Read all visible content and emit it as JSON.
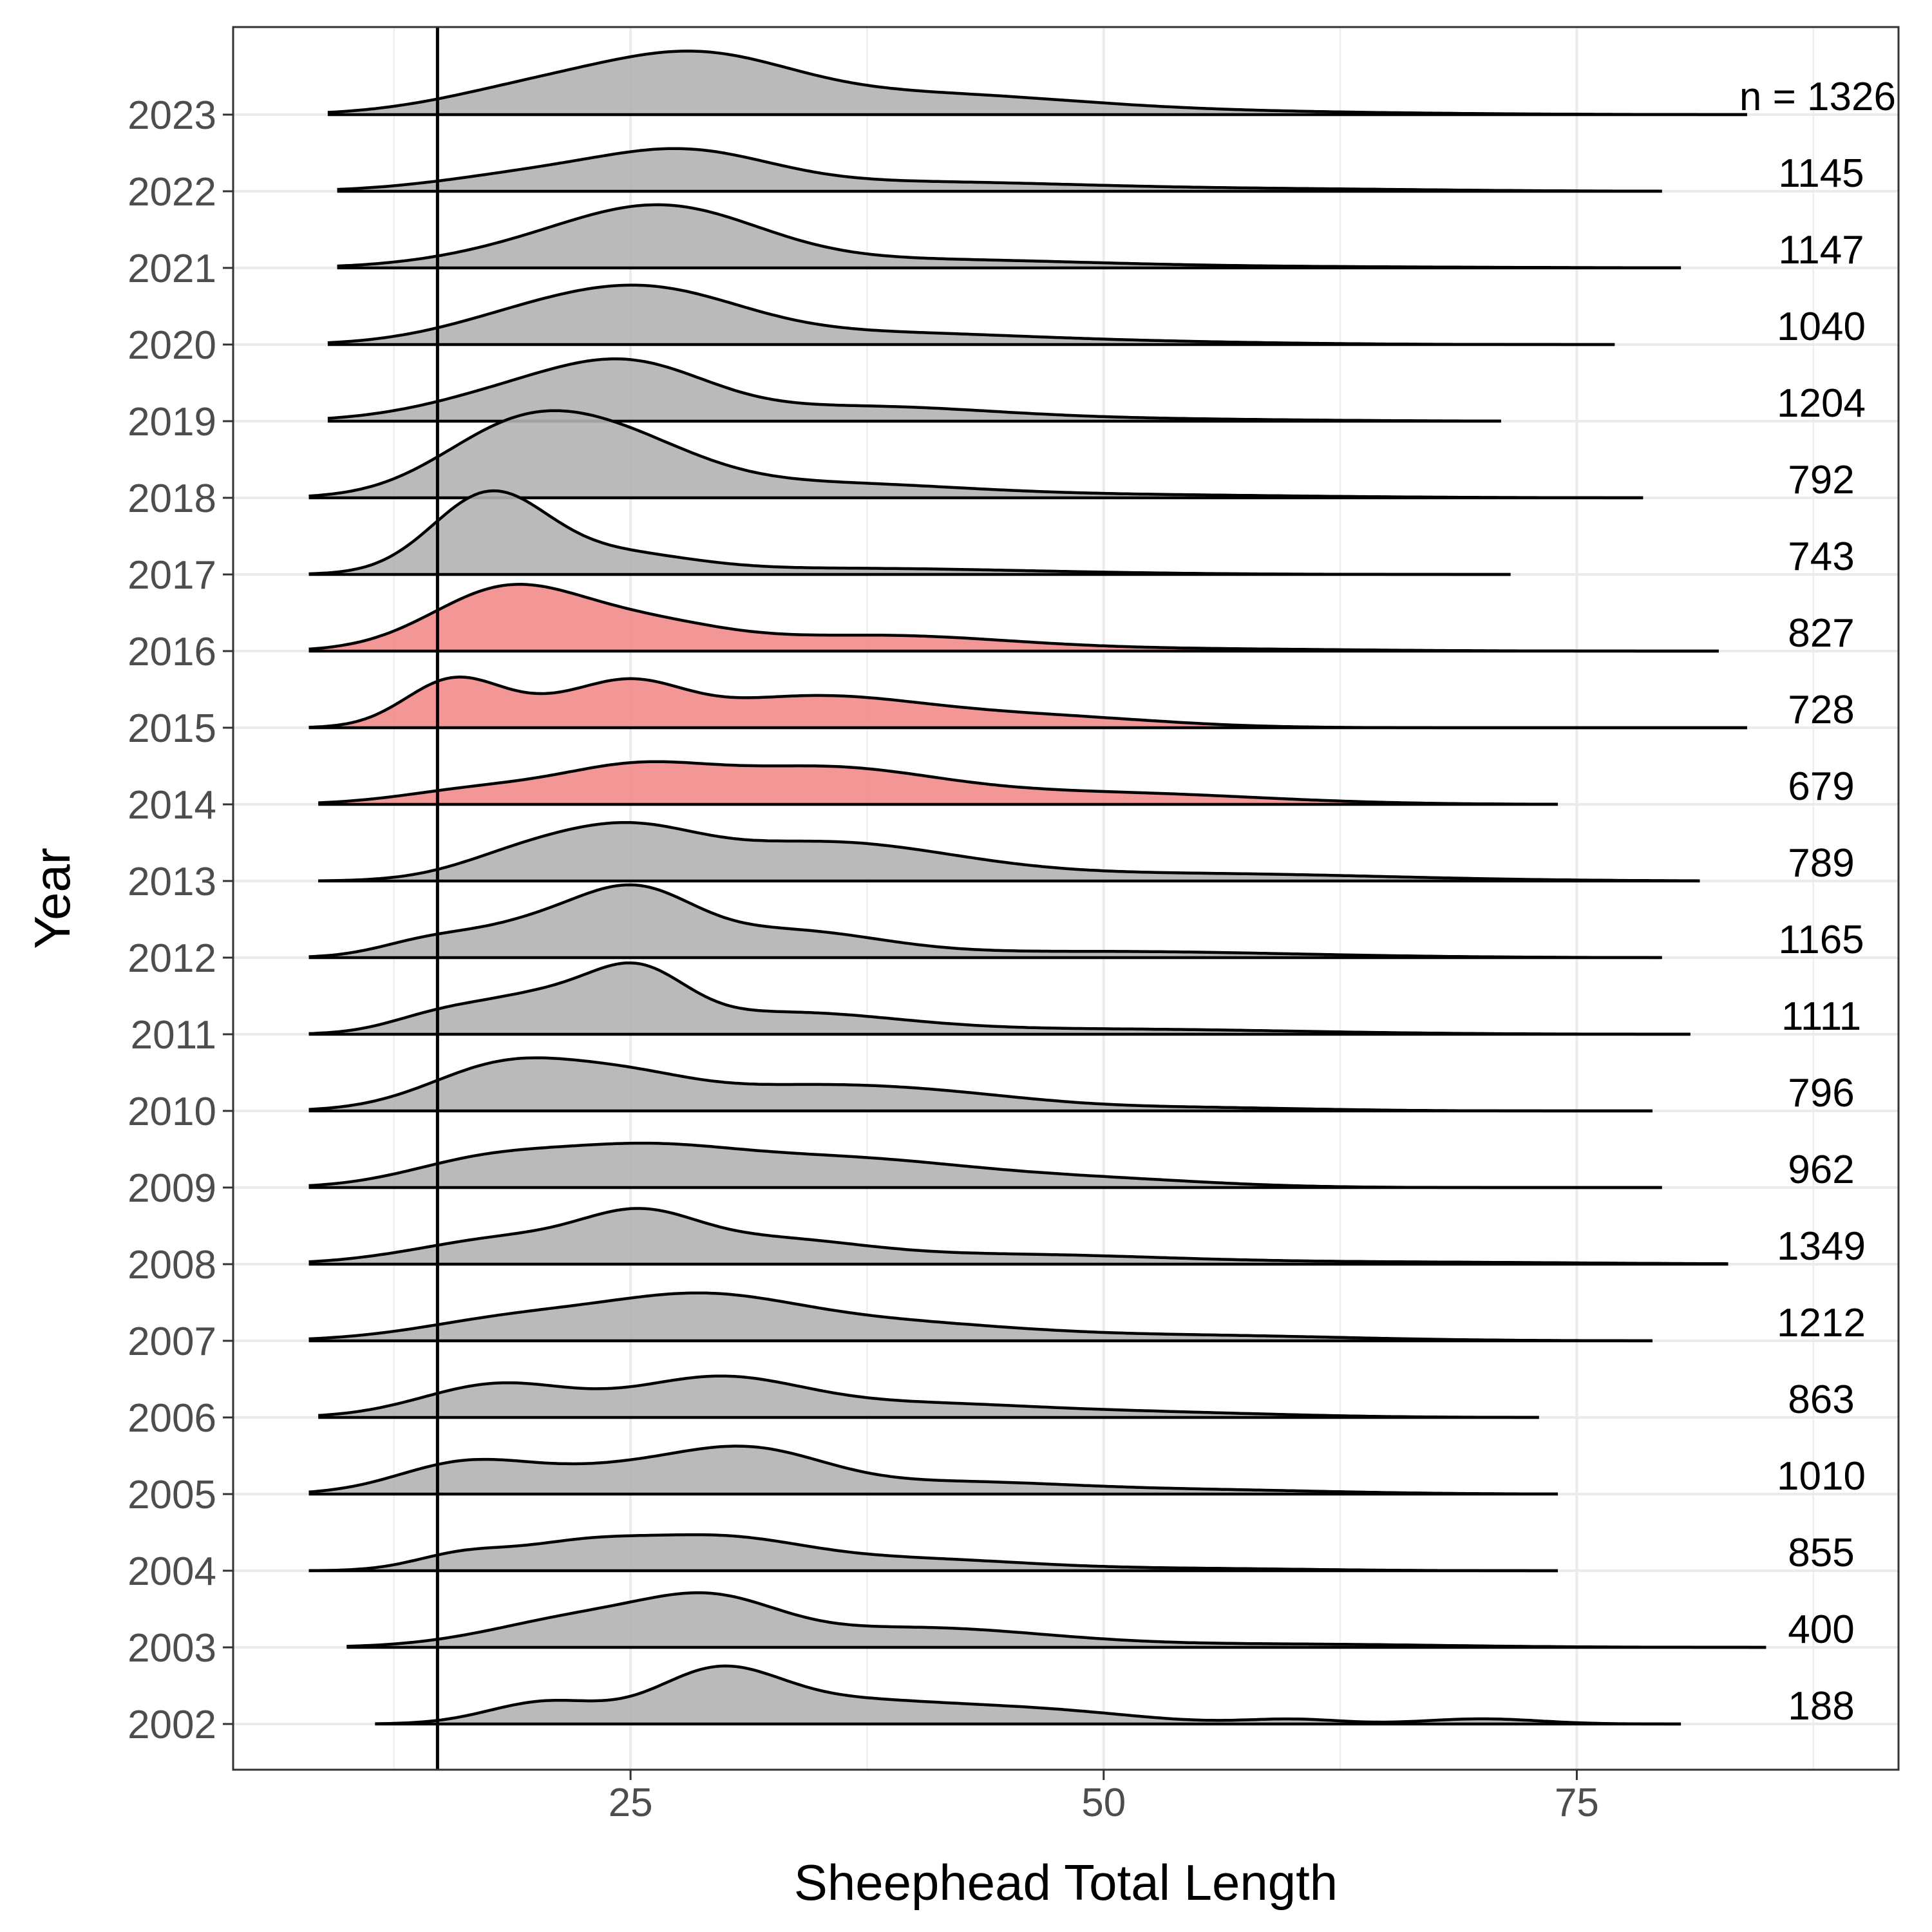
{
  "chart_data": {
    "type": "ridgeline",
    "xlabel": "Sheephead Total Length",
    "ylabel": "Year",
    "xlim": [
      4,
      92
    ],
    "x_ticks": [
      25,
      50,
      75
    ],
    "grid": true,
    "reference_line_x": 14.8,
    "n_prefix": "n = ",
    "colors": {
      "default_fill": "#b3b3b3",
      "highlight_fill": "#f28b8b",
      "outline": "#000000",
      "grid": "#ebebeb"
    },
    "series": [
      {
        "year": "2002",
        "n": "188",
        "xmin": 11.5,
        "xmax": 80.5,
        "highlight": false,
        "peaks": [
          [
            20.5,
            0.42,
            3.0
          ],
          [
            29.5,
            0.86,
            3.2
          ],
          [
            36,
            0.45,
            6
          ],
          [
            47,
            0.22,
            5
          ],
          [
            60,
            0.09,
            2.5
          ],
          [
            70,
            0.1,
            3
          ]
        ]
      },
      {
        "year": "2003",
        "n": "400",
        "xmin": 10,
        "xmax": 85,
        "highlight": false,
        "peaks": [
          [
            23,
            0.6,
            5
          ],
          [
            29.5,
            0.66,
            3.5
          ],
          [
            40,
            0.38,
            7
          ],
          [
            60,
            0.06,
            8
          ]
        ]
      },
      {
        "year": "2004",
        "n": "855",
        "xmin": 8,
        "xmax": 74,
        "highlight": false,
        "peaks": [
          [
            16,
            0.28,
            2.5
          ],
          [
            22,
            0.44,
            3.5
          ],
          [
            29.5,
            0.6,
            4.5
          ],
          [
            40,
            0.22,
            6
          ],
          [
            55,
            0.04,
            6
          ]
        ]
      },
      {
        "year": "2005",
        "n": "1010",
        "xmin": 8,
        "xmax": 74,
        "highlight": false,
        "peaks": [
          [
            16,
            0.52,
            3.5
          ],
          [
            24,
            0.46,
            5
          ],
          [
            31.5,
            0.72,
            4
          ],
          [
            42,
            0.22,
            6
          ],
          [
            55,
            0.08,
            7
          ]
        ]
      },
      {
        "year": "2006",
        "n": "863",
        "xmin": 8.5,
        "xmax": 73,
        "highlight": false,
        "peaks": [
          [
            18,
            0.64,
            4
          ],
          [
            29.5,
            0.74,
            4.5
          ],
          [
            40,
            0.24,
            6
          ],
          [
            52,
            0.1,
            7
          ]
        ]
      },
      {
        "year": "2007",
        "n": "1212",
        "xmin": 8,
        "xmax": 79,
        "highlight": false,
        "peaks": [
          [
            19,
            0.42,
            5
          ],
          [
            28.5,
            0.72,
            5
          ],
          [
            38,
            0.35,
            7
          ],
          [
            55,
            0.1,
            8
          ]
        ]
      },
      {
        "year": "2008",
        "n": "1349",
        "xmin": 8,
        "xmax": 83,
        "highlight": false,
        "peaks": [
          [
            19,
            0.52,
            5
          ],
          [
            25.5,
            0.66,
            3
          ],
          [
            32,
            0.44,
            5
          ],
          [
            45,
            0.18,
            8
          ],
          [
            65,
            0.04,
            10
          ]
        ]
      },
      {
        "year": "2009",
        "n": "962",
        "xmin": 8,
        "xmax": 79.5,
        "highlight": false,
        "peaks": [
          [
            17,
            0.44,
            4
          ],
          [
            25,
            0.64,
            5
          ],
          [
            36,
            0.55,
            7
          ],
          [
            50,
            0.14,
            6
          ]
        ]
      },
      {
        "year": "2010",
        "n": "796",
        "xmin": 8,
        "xmax": 79,
        "highlight": false,
        "peaks": [
          [
            18.5,
            0.9,
            4
          ],
          [
            25,
            0.48,
            3.5
          ],
          [
            32,
            0.3,
            5
          ],
          [
            40,
            0.36,
            6
          ],
          [
            55,
            0.06,
            6
          ]
        ]
      },
      {
        "year": "2011",
        "n": "1111",
        "xmin": 8,
        "xmax": 81,
        "highlight": false,
        "peaks": [
          [
            14.5,
            0.22,
            2.5
          ],
          [
            20.5,
            0.74,
            4
          ],
          [
            25.5,
            0.84,
            2.5
          ],
          [
            33,
            0.4,
            6
          ],
          [
            50,
            0.1,
            10
          ]
        ]
      },
      {
        "year": "2012",
        "n": "1165",
        "xmin": 8,
        "xmax": 79.5,
        "highlight": false,
        "peaks": [
          [
            14,
            0.22,
            2.5
          ],
          [
            20.5,
            0.68,
            4
          ],
          [
            25.5,
            0.92,
            3
          ],
          [
            33,
            0.5,
            5
          ],
          [
            50,
            0.12,
            10
          ]
        ]
      },
      {
        "year": "2013",
        "n": "789",
        "xmin": 8.5,
        "xmax": 81.5,
        "highlight": false,
        "peaks": [
          [
            19.5,
            0.5,
            3.5
          ],
          [
            25,
            0.72,
            3.5
          ],
          [
            35,
            0.74,
            7
          ],
          [
            55,
            0.14,
            10
          ]
        ]
      },
      {
        "year": "2014",
        "n": "679",
        "xmin": 8.5,
        "xmax": 74,
        "highlight": true,
        "peaks": [
          [
            17,
            0.28,
            4
          ],
          [
            25,
            0.6,
            4
          ],
          [
            35,
            0.68,
            6
          ],
          [
            50,
            0.22,
            8
          ]
        ]
      },
      {
        "year": "2015",
        "n": "728",
        "xmin": 8,
        "xmax": 84,
        "highlight": true,
        "peaks": [
          [
            15.5,
            0.86,
            2.5
          ],
          [
            20,
            0.32,
            3
          ],
          [
            25,
            0.7,
            2.8
          ],
          [
            34.5,
            0.6,
            6
          ],
          [
            47,
            0.2,
            6
          ]
        ]
      },
      {
        "year": "2016",
        "n": "827",
        "xmin": 8,
        "xmax": 82.5,
        "highlight": true,
        "peaks": [
          [
            18.5,
            1.2,
            4
          ],
          [
            26,
            0.45,
            4
          ],
          [
            38,
            0.3,
            7
          ],
          [
            55,
            0.04,
            8
          ]
        ]
      },
      {
        "year": "2017",
        "n": "743",
        "xmin": 8,
        "xmax": 71.5,
        "highlight": false,
        "peaks": [
          [
            17.5,
            1.5,
            3
          ],
          [
            24,
            0.36,
            4
          ],
          [
            36,
            0.12,
            10
          ]
        ]
      },
      {
        "year": "2018",
        "n": "792",
        "xmin": 8,
        "xmax": 78.5,
        "highlight": false,
        "peaks": [
          [
            18.5,
            1.02,
            4
          ],
          [
            24,
            1.02,
            4.5
          ],
          [
            35,
            0.26,
            7
          ],
          [
            50,
            0.06,
            10
          ]
        ]
      },
      {
        "year": "2019",
        "n": "1204",
        "xmin": 9,
        "xmax": 71,
        "highlight": false,
        "peaks": [
          [
            20,
            0.62,
            5
          ],
          [
            25.5,
            0.76,
            4
          ],
          [
            37,
            0.28,
            7
          ],
          [
            52,
            0.04,
            8
          ]
        ]
      },
      {
        "year": "2020",
        "n": "1040",
        "xmin": 9,
        "xmax": 77,
        "highlight": false,
        "peaks": [
          [
            19,
            0.38,
            4.5
          ],
          [
            26,
            0.98,
            5
          ],
          [
            38,
            0.2,
            7
          ],
          [
            50,
            0.06,
            8
          ]
        ]
      },
      {
        "year": "2021",
        "n": "1147",
        "xmin": 9.5,
        "xmax": 80.5,
        "highlight": false,
        "peaks": [
          [
            20,
            0.3,
            5
          ],
          [
            27,
            1.05,
            5
          ],
          [
            40,
            0.16,
            9
          ],
          [
            60,
            0.02,
            10
          ]
        ]
      },
      {
        "year": "2022",
        "n": "1145",
        "xmin": 9.5,
        "xmax": 79.5,
        "highlight": false,
        "peaks": [
          [
            20,
            0.32,
            5
          ],
          [
            28,
            0.66,
            4.5
          ],
          [
            40,
            0.18,
            9
          ],
          [
            60,
            0.04,
            8
          ]
        ]
      },
      {
        "year": "2023",
        "n": "1326",
        "xmin": 9,
        "xmax": 84,
        "highlight": false,
        "peaks": [
          [
            20,
            0.48,
            5
          ],
          [
            28.5,
            0.98,
            5
          ],
          [
            40,
            0.38,
            8
          ],
          [
            55,
            0.06,
            10
          ]
        ]
      }
    ]
  }
}
